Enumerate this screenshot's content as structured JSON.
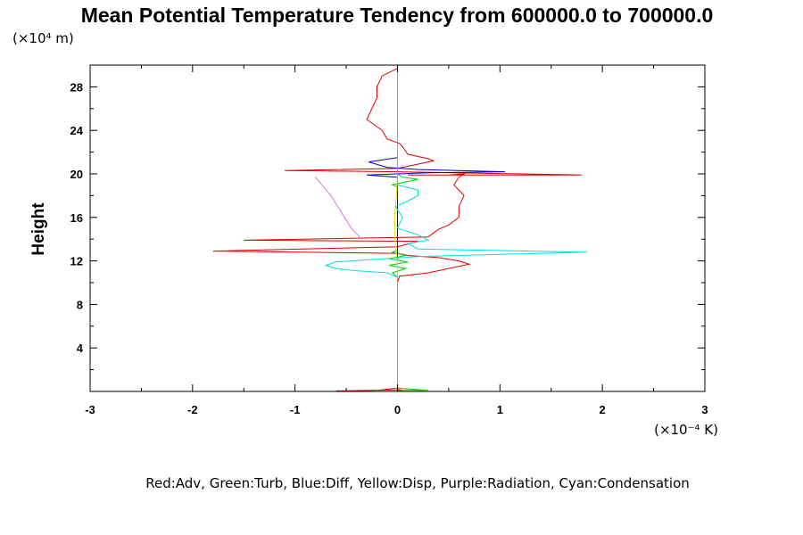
{
  "chart_data": {
    "type": "line",
    "title": "Mean Potential Temperature Tendency from 600000.0 to 700000.0",
    "ylabel": "Height",
    "yunit": "(×10⁴ m)",
    "xunit": "(×10⁻⁴ K)",
    "caption": "Red:Adv, Green:Turb, Blue:Diff, Yellow:Disp, Purple:Radiation, Cyan:Condensation",
    "xlim": [
      -3,
      3
    ],
    "ylim": [
      0,
      30
    ],
    "xticks": [
      -3,
      -2,
      -1,
      0,
      1,
      2,
      3
    ],
    "yticks": [
      4,
      8,
      12,
      16,
      20,
      24,
      28
    ],
    "grid": false,
    "series": [
      {
        "name": "Adv",
        "color": "#e00000",
        "points": [
          [
            0.0,
            0.1
          ],
          [
            0.05,
            0.1
          ],
          [
            0.0,
            0.2
          ],
          [
            0.0,
            0.3
          ],
          [
            -0.2,
            0.1
          ],
          [
            -0.6,
            0.05
          ],
          [
            0.0,
            0.15
          ],
          [
            0.0,
            2
          ],
          [
            0.0,
            6
          ],
          [
            0.0,
            10
          ],
          [
            0.02,
            10.6
          ],
          [
            0.3,
            10.9
          ],
          [
            0.5,
            11.3
          ],
          [
            0.7,
            11.7
          ],
          [
            0.6,
            12.0
          ],
          [
            0.4,
            12.3
          ],
          [
            0.1,
            12.5
          ],
          [
            0.0,
            12.7
          ],
          [
            -1.8,
            12.9
          ],
          [
            0.0,
            13.3
          ],
          [
            0.2,
            13.8
          ],
          [
            -1.5,
            13.9
          ],
          [
            0.3,
            14.2
          ],
          [
            0.4,
            14.9
          ],
          [
            0.5,
            15.3
          ],
          [
            0.6,
            16.0
          ],
          [
            0.6,
            17.0
          ],
          [
            0.65,
            18.0
          ],
          [
            0.6,
            18.5
          ],
          [
            0.55,
            19.0
          ],
          [
            0.6,
            19.7
          ],
          [
            0.65,
            20.0
          ],
          [
            0.5,
            19.9
          ],
          [
            0.1,
            19.9
          ],
          [
            1.8,
            19.9
          ],
          [
            0.0,
            20.2
          ],
          [
            -1.1,
            20.3
          ],
          [
            0.0,
            20.5
          ],
          [
            0.1,
            20.7
          ],
          [
            0.35,
            21.2
          ],
          [
            0.3,
            21.4
          ],
          [
            0.1,
            21.8
          ],
          [
            0.05,
            22.5
          ],
          [
            0.02,
            22.8
          ],
          [
            -0.1,
            23.2
          ],
          [
            -0.15,
            24.0
          ],
          [
            -0.3,
            25.0
          ],
          [
            -0.25,
            26.0
          ],
          [
            -0.2,
            27.0
          ],
          [
            -0.2,
            28.0
          ],
          [
            -0.15,
            29.0
          ],
          [
            0.0,
            29.7
          ]
        ]
      },
      {
        "name": "Turb",
        "color": "#00d000",
        "points": [
          [
            0.0,
            0.1
          ],
          [
            0.3,
            0.1
          ],
          [
            0.0,
            0.3
          ],
          [
            0.0,
            10.5
          ],
          [
            -0.05,
            10.9
          ],
          [
            0.08,
            11.3
          ],
          [
            -0.08,
            11.6
          ],
          [
            0.1,
            11.9
          ],
          [
            -0.08,
            12.2
          ],
          [
            0.08,
            12.5
          ],
          [
            -0.05,
            12.8
          ],
          [
            0.0,
            13.0
          ],
          [
            0.0,
            18.8
          ],
          [
            -0.05,
            19.0
          ],
          [
            0.2,
            19.5
          ],
          [
            0.05,
            19.7
          ],
          [
            0.0,
            20.0
          ],
          [
            0.0,
            29.5
          ]
        ]
      },
      {
        "name": "Diff",
        "color": "#0000e0",
        "points": [
          [
            0.0,
            0.0
          ],
          [
            0.0,
            19.7
          ],
          [
            -0.3,
            19.9
          ],
          [
            0.3,
            20.1
          ],
          [
            1.05,
            20.2
          ],
          [
            0.2,
            20.4
          ],
          [
            -0.1,
            20.6
          ],
          [
            -0.28,
            21.1
          ],
          [
            0.0,
            21.5
          ],
          [
            0.0,
            29.7
          ]
        ]
      },
      {
        "name": "Disp",
        "color": "#e0e000",
        "points": [
          [
            0.0,
            0.0
          ],
          [
            0.0,
            12.0
          ],
          [
            -0.02,
            13.5
          ],
          [
            -0.03,
            16.0
          ],
          [
            -0.01,
            18.0
          ],
          [
            0.0,
            20.0
          ],
          [
            0.0,
            29.5
          ]
        ]
      },
      {
        "name": "Radiation",
        "color": "#c080e0",
        "points": [
          [
            -0.35,
            14.0
          ],
          [
            -0.45,
            15.0
          ],
          [
            -0.55,
            16.5
          ],
          [
            -0.65,
            18.0
          ],
          [
            -0.8,
            19.7
          ]
        ]
      },
      {
        "name": "Condensation",
        "color": "#00e0e0",
        "points": [
          [
            0.0,
            0.0
          ],
          [
            0.0,
            10.5
          ],
          [
            -0.1,
            10.9
          ],
          [
            -0.4,
            11.1
          ],
          [
            -0.6,
            11.3
          ],
          [
            -0.7,
            11.6
          ],
          [
            -0.6,
            11.9
          ],
          [
            -0.3,
            12.1
          ],
          [
            0.2,
            12.4
          ],
          [
            1.85,
            12.8
          ],
          [
            0.2,
            13.1
          ],
          [
            0.1,
            13.6
          ],
          [
            0.3,
            13.9
          ],
          [
            0.2,
            14.4
          ],
          [
            0.0,
            15.0
          ],
          [
            0.05,
            16.0
          ],
          [
            -0.02,
            17.0
          ],
          [
            0.1,
            17.5
          ],
          [
            0.2,
            18.0
          ],
          [
            0.2,
            18.5
          ],
          [
            0.0,
            19.0
          ],
          [
            0.0,
            20.5
          ],
          [
            0.0,
            29.6
          ]
        ]
      }
    ]
  }
}
